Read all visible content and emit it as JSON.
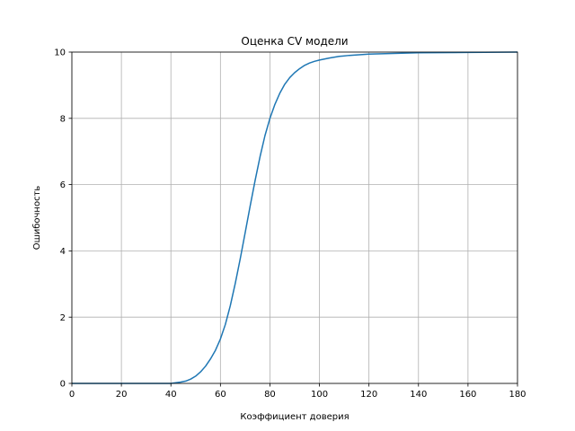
{
  "chart_data": {
    "type": "line",
    "title": "Оценка CV модели",
    "xlabel": "Коэффициент доверия",
    "ylabel": "Ошибочность",
    "xlim": [
      0,
      180
    ],
    "ylim": [
      0,
      10
    ],
    "xticks": [
      0,
      20,
      40,
      60,
      80,
      100,
      120,
      140,
      160,
      180
    ],
    "yticks": [
      0,
      2,
      4,
      6,
      8,
      10
    ],
    "grid": true,
    "series": [
      {
        "color": "#1f77b4",
        "x": [
          0,
          20,
          40,
          42,
          44,
          46,
          48,
          50,
          52,
          54,
          56,
          58,
          60,
          62,
          64,
          66,
          68,
          70,
          72,
          74,
          76,
          78,
          80,
          82,
          84,
          86,
          88,
          90,
          92,
          94,
          96,
          98,
          100,
          104,
          108,
          112,
          116,
          120,
          130,
          140,
          160,
          180
        ],
        "y": [
          0,
          0,
          0,
          0.02,
          0.04,
          0.07,
          0.13,
          0.22,
          0.35,
          0.52,
          0.74,
          1.0,
          1.34,
          1.78,
          2.35,
          3.02,
          3.76,
          4.55,
          5.35,
          6.12,
          6.84,
          7.48,
          8.0,
          8.42,
          8.76,
          9.03,
          9.23,
          9.38,
          9.5,
          9.6,
          9.67,
          9.72,
          9.76,
          9.82,
          9.87,
          9.9,
          9.92,
          9.94,
          9.96,
          9.98,
          9.99,
          10.0
        ]
      }
    ]
  }
}
